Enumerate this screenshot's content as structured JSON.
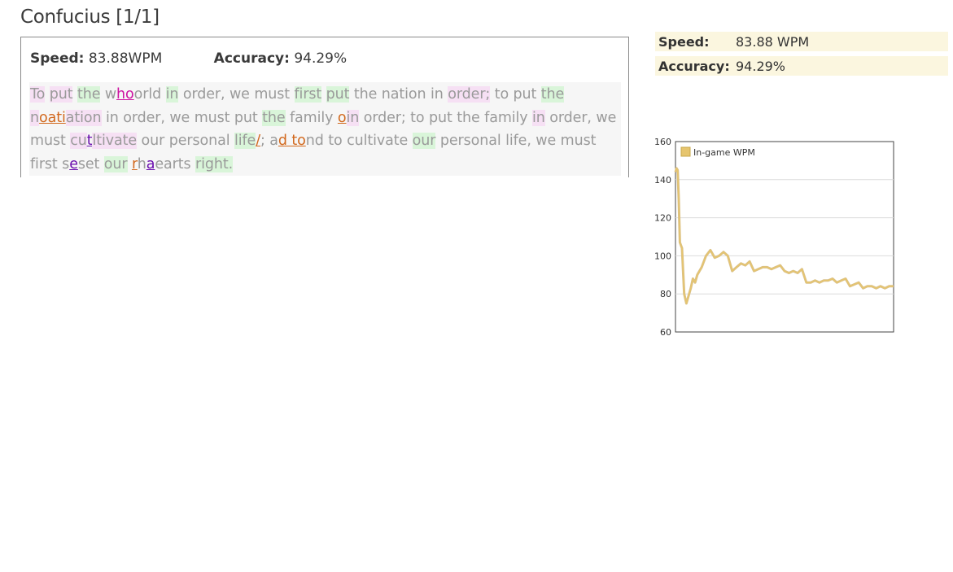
{
  "title": "Confucius [1/1]",
  "result": {
    "speed_label": "Speed:",
    "speed_value": "83.88WPM",
    "accuracy_label": "Accuracy:",
    "accuracy_value": "94.29%"
  },
  "passage": [
    {
      "t": "To",
      "c": "p"
    },
    {
      "t": " "
    },
    {
      "t": "put",
      "c": "p"
    },
    {
      "t": " "
    },
    {
      "t": "the",
      "c": "g"
    },
    {
      "t": " "
    },
    {
      "t": "w"
    },
    {
      "t": "h",
      "c": "err-m"
    },
    {
      "t": "o",
      "c": "err-m"
    },
    {
      "t": "orld"
    },
    {
      "t": " "
    },
    {
      "t": "in",
      "c": "g"
    },
    {
      "t": " "
    },
    {
      "t": "order,"
    },
    {
      "t": " "
    },
    {
      "t": "we"
    },
    {
      "t": " "
    },
    {
      "t": "must"
    },
    {
      "t": " "
    },
    {
      "t": "first",
      "c": "g"
    },
    {
      "t": " "
    },
    {
      "t": "put",
      "c": "g"
    },
    {
      "t": " "
    },
    {
      "t": "the"
    },
    {
      "t": " "
    },
    {
      "t": "nation"
    },
    {
      "t": " "
    },
    {
      "t": "in"
    },
    {
      "t": " "
    },
    {
      "t": "order;",
      "c": "p"
    },
    {
      "t": " "
    },
    {
      "t": "to"
    },
    {
      "t": " "
    },
    {
      "t": "put"
    },
    {
      "t": " "
    },
    {
      "t": "the",
      "c": "g"
    },
    {
      "t": " "
    },
    {
      "t": "n",
      "c": "p"
    },
    {
      "t": "oati",
      "c": "err-o"
    },
    {
      "t": "ation",
      "c": "p"
    },
    {
      "t": " "
    },
    {
      "t": "in"
    },
    {
      "t": " "
    },
    {
      "t": "order,"
    },
    {
      "t": " "
    },
    {
      "t": "we"
    },
    {
      "t": " "
    },
    {
      "t": "must"
    },
    {
      "t": " "
    },
    {
      "t": "put"
    },
    {
      "t": " "
    },
    {
      "t": "the",
      "c": "g"
    },
    {
      "t": " "
    },
    {
      "t": "family"
    },
    {
      "t": " "
    },
    {
      "t": "o",
      "c": "err-o"
    },
    {
      "t": "in",
      "c": "p"
    },
    {
      "t": " "
    },
    {
      "t": "order;"
    },
    {
      "t": " "
    },
    {
      "t": "to"
    },
    {
      "t": " "
    },
    {
      "t": "put"
    },
    {
      "t": " "
    },
    {
      "t": "the"
    },
    {
      "t": " "
    },
    {
      "t": "family"
    },
    {
      "t": " "
    },
    {
      "t": "in",
      "c": "p"
    },
    {
      "t": " "
    },
    {
      "t": "order,"
    },
    {
      "t": " "
    },
    {
      "t": "we"
    },
    {
      "t": " "
    },
    {
      "t": "must"
    },
    {
      "t": " "
    },
    {
      "t": "cu",
      "c": "p"
    },
    {
      "t": "t",
      "c": "err-v"
    },
    {
      "t": "ltivate",
      "c": "p"
    },
    {
      "t": " "
    },
    {
      "t": "our"
    },
    {
      "t": " "
    },
    {
      "t": "personal"
    },
    {
      "t": " "
    },
    {
      "t": "life",
      "c": "g"
    },
    {
      "t": "/",
      "c": "err-o"
    },
    {
      "t": ";"
    },
    {
      "t": " "
    },
    {
      "t": "a"
    },
    {
      "t": "d to",
      "c": "err-o"
    },
    {
      "t": "nd"
    },
    {
      "t": " "
    },
    {
      "t": "to"
    },
    {
      "t": " "
    },
    {
      "t": "cultivate"
    },
    {
      "t": " "
    },
    {
      "t": "our",
      "c": "g"
    },
    {
      "t": " "
    },
    {
      "t": "personal"
    },
    {
      "t": " "
    },
    {
      "t": "life,"
    },
    {
      "t": " "
    },
    {
      "t": "we"
    },
    {
      "t": " "
    },
    {
      "t": "must"
    },
    {
      "t": " "
    },
    {
      "t": "first"
    },
    {
      "t": " "
    },
    {
      "t": "s"
    },
    {
      "t": "e",
      "c": "err-v"
    },
    {
      "t": "set"
    },
    {
      "t": " "
    },
    {
      "t": "our",
      "c": "g"
    },
    {
      "t": " "
    },
    {
      "t": "r",
      "c": "err-o"
    },
    {
      "t": "h"
    },
    {
      "t": "a",
      "c": "err-v"
    },
    {
      "t": "earts"
    },
    {
      "t": " "
    },
    {
      "t": "right.",
      "c": "g"
    }
  ],
  "side": {
    "speed_label": "Speed:",
    "speed_value": "83.88 WPM",
    "accuracy_label": "Accuracy:",
    "accuracy_value": "94.29%"
  },
  "chart_data": {
    "type": "line",
    "legend": [
      "In-game WPM"
    ],
    "legend_position": "top-left",
    "ylim": [
      60,
      160
    ],
    "yticks": [
      160,
      140,
      120,
      100,
      80,
      60
    ],
    "series": [
      {
        "name": "In-game WPM",
        "color": "#e6c56e",
        "x": [
          0,
          0.5,
          1,
          1.5,
          2,
          3,
          4,
          5,
          6,
          7,
          8,
          9,
          10,
          12,
          14,
          16,
          18,
          20,
          22,
          24,
          26,
          28,
          30,
          32,
          34,
          36,
          38,
          40,
          42,
          44,
          46,
          48,
          50,
          52,
          54,
          56,
          58,
          60,
          62,
          64,
          66,
          68,
          70,
          72,
          74,
          76,
          78,
          80,
          82,
          84,
          86,
          88,
          90,
          92,
          94,
          96,
          98,
          100
        ],
        "values": [
          144,
          146,
          145,
          130,
          107,
          104,
          80,
          75,
          79,
          83,
          88,
          86,
          90,
          94,
          100,
          103,
          99,
          100,
          102,
          100,
          92,
          94,
          96,
          95,
          97,
          92,
          93,
          94,
          94,
          93,
          94,
          95,
          92,
          91,
          92,
          91,
          93,
          86,
          86,
          87,
          86,
          87,
          87,
          88,
          86,
          87,
          88,
          84,
          85,
          86,
          83,
          84,
          84,
          83,
          84,
          83,
          84,
          84
        ]
      }
    ]
  }
}
